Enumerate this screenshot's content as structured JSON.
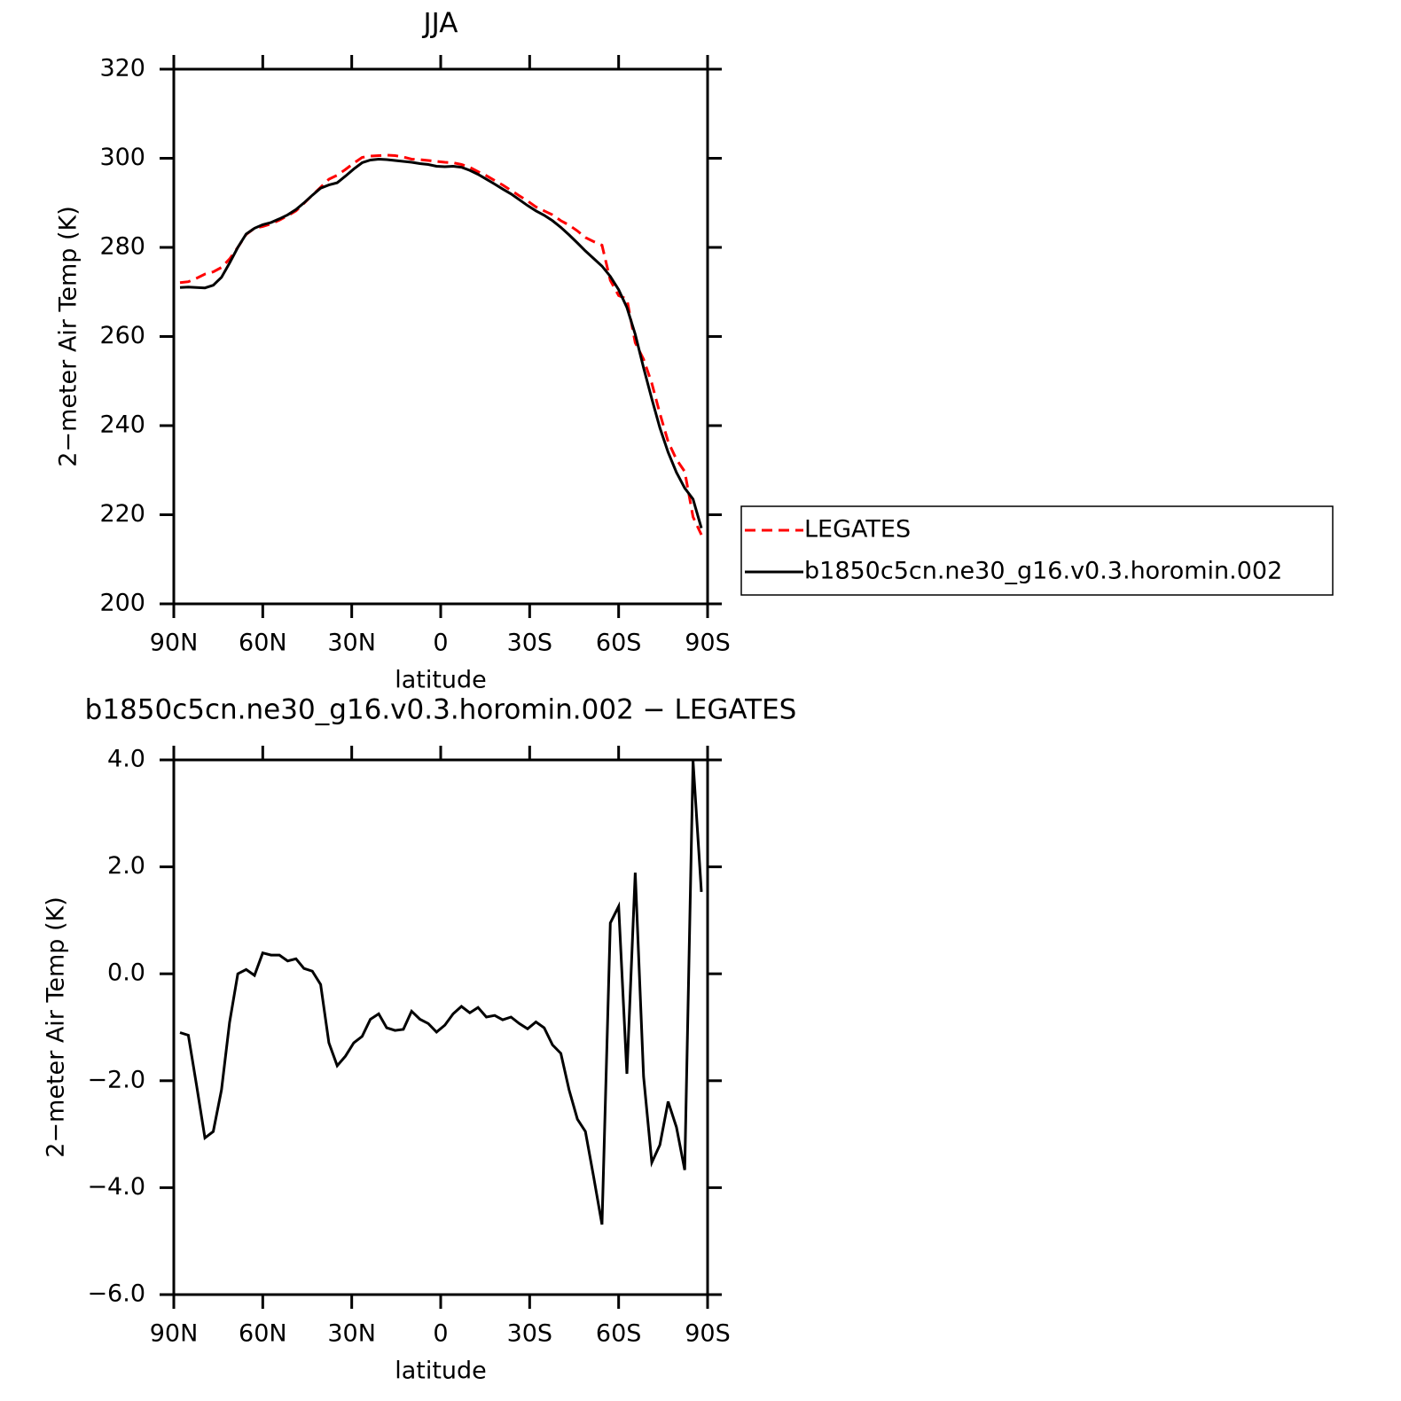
{
  "chart_data": [
    {
      "type": "line",
      "title": "JJA",
      "xlabel": "latitude",
      "ylabel": "2−meter Air Temp (K)",
      "x": [
        87.9,
        85.1,
        82.3,
        79.5,
        76.7,
        73.9,
        71.2,
        68.4,
        65.6,
        62.8,
        60.0,
        57.2,
        54.4,
        51.6,
        48.8,
        46.1,
        43.3,
        40.5,
        37.7,
        34.9,
        32.1,
        29.3,
        26.5,
        23.7,
        20.9,
        18.2,
        15.4,
        12.6,
        9.8,
        7.0,
        4.2,
        1.4,
        -1.4,
        -4.2,
        -7.0,
        -9.8,
        -12.6,
        -15.4,
        -18.2,
        -20.9,
        -23.7,
        -26.5,
        -29.3,
        -32.1,
        -34.9,
        -37.7,
        -40.5,
        -43.3,
        -46.1,
        -48.8,
        -51.6,
        -54.4,
        -57.2,
        -60.0,
        -62.8,
        -65.6,
        -68.4,
        -71.2,
        -73.9,
        -76.7,
        -79.5,
        -82.3,
        -85.1,
        -87.9
      ],
      "series": [
        {
          "name": "LEGATES",
          "color": "#ff0000",
          "line_style": "dashed",
          "values": [
            272.1,
            272.3,
            273.1,
            274.0,
            274.5,
            275.5,
            277.4,
            280.0,
            282.9,
            284.3,
            284.7,
            285.3,
            286.1,
            287.1,
            288.2,
            289.9,
            291.7,
            293.5,
            295.3,
            296.2,
            297.5,
            298.9,
            300.2,
            300.5,
            300.6,
            300.7,
            300.6,
            300.3,
            299.8,
            299.7,
            299.5,
            299.3,
            299.1,
            299.0,
            298.6,
            298.0,
            297.0,
            296.1,
            295.0,
            294.0,
            292.8,
            291.6,
            290.4,
            289.1,
            288.2,
            287.3,
            286.0,
            285.0,
            283.7,
            282.2,
            281.3,
            280.5,
            272.6,
            269.2,
            268.4,
            258.6,
            254.9,
            249.5,
            242.7,
            236.4,
            232.4,
            229.7,
            219.5,
            215.5
          ]
        },
        {
          "name": "b1850c5cn.ne30_g16.v0.3.horomin.002",
          "color": "#000000",
          "line_style": "solid",
          "values": [
            271.0,
            271.1,
            271.0,
            270.9,
            271.5,
            273.3,
            276.5,
            280.0,
            283.0,
            284.3,
            285.1,
            285.6,
            286.4,
            287.3,
            288.5,
            290.0,
            291.7,
            293.3,
            294.0,
            294.5,
            296.0,
            297.6,
            299.0,
            299.6,
            299.8,
            299.7,
            299.5,
            299.3,
            299.1,
            298.8,
            298.6,
            298.2,
            298.1,
            298.2,
            298.0,
            297.3,
            296.4,
            295.3,
            294.2,
            293.1,
            292.0,
            290.7,
            289.4,
            288.2,
            287.2,
            286.0,
            284.5,
            282.8,
            281.0,
            279.2,
            277.5,
            275.8,
            273.5,
            270.5,
            266.5,
            260.5,
            253.0,
            246.0,
            239.5,
            234.0,
            229.5,
            226.0,
            223.5,
            217.0
          ]
        }
      ],
      "xlim": [
        90,
        -90
      ],
      "xticks": [
        {
          "value": 90,
          "label": "90N"
        },
        {
          "value": 60,
          "label": "60N"
        },
        {
          "value": 30,
          "label": "30N"
        },
        0,
        {
          "value": -30,
          "label": "30S"
        },
        {
          "value": -60,
          "label": "60S"
        },
        {
          "value": -90,
          "label": "90S"
        }
      ],
      "ylim": [
        200,
        320
      ],
      "yticks": [
        200,
        220,
        240,
        260,
        280,
        300,
        320
      ],
      "legend": "right"
    },
    {
      "type": "line",
      "title": "b1850c5cn.ne30_g16.v0.3.horomin.002 − LEGATES",
      "xlabel": "latitude",
      "ylabel": "2−meter Air Temp (K)",
      "x": [
        87.9,
        85.1,
        82.3,
        79.5,
        76.7,
        73.9,
        71.2,
        68.4,
        65.6,
        62.8,
        60.0,
        57.2,
        54.4,
        51.6,
        48.8,
        46.1,
        43.3,
        40.5,
        37.7,
        34.9,
        32.1,
        29.3,
        26.5,
        23.7,
        20.9,
        18.2,
        15.4,
        12.6,
        9.8,
        7.0,
        4.2,
        1.4,
        -1.4,
        -4.2,
        -7.0,
        -9.8,
        -12.6,
        -15.4,
        -18.2,
        -20.9,
        -23.7,
        -26.5,
        -29.3,
        -32.1,
        -34.9,
        -37.7,
        -40.5,
        -43.3,
        -46.1,
        -48.8,
        -51.6,
        -54.4,
        -57.2,
        -60.0,
        -62.8,
        -65.6,
        -68.4,
        -71.2,
        -73.9,
        -76.7,
        -79.5,
        -82.3,
        -85.1,
        -87.9
      ],
      "values": [
        -1.1,
        -1.15,
        -2.1,
        -3.07,
        -2.95,
        -2.17,
        -0.91,
        0.0,
        0.08,
        -0.03,
        0.39,
        0.35,
        0.35,
        0.24,
        0.28,
        0.1,
        0.05,
        -0.2,
        -1.29,
        -1.72,
        -1.54,
        -1.29,
        -1.17,
        -0.85,
        -0.75,
        -1.01,
        -1.06,
        -1.04,
        -0.7,
        -0.85,
        -0.93,
        -1.09,
        -0.96,
        -0.75,
        -0.61,
        -0.73,
        -0.63,
        -0.81,
        -0.78,
        -0.86,
        -0.81,
        -0.93,
        -1.03,
        -0.9,
        -1.01,
        -1.33,
        -1.49,
        -2.17,
        -2.72,
        -2.95,
        -3.81,
        -4.69,
        0.95,
        1.26,
        -1.87,
        1.89,
        -1.92,
        -3.53,
        -3.2,
        -2.39,
        -2.87,
        -3.67,
        3.98,
        1.53
      ],
      "color": "#000000",
      "xlim": [
        90,
        -90
      ],
      "xticks": [
        {
          "value": 90,
          "label": "90N"
        },
        {
          "value": 60,
          "label": "60N"
        },
        {
          "value": 30,
          "label": "30N"
        },
        0,
        {
          "value": -30,
          "label": "30S"
        },
        {
          "value": -60,
          "label": "60S"
        },
        {
          "value": -90,
          "label": "90S"
        }
      ],
      "ylim": [
        -6,
        4
      ],
      "yticks": [
        {
          "value": -6,
          "label": "−6.0"
        },
        {
          "value": -4,
          "label": "−4.0"
        },
        {
          "value": -2,
          "label": "−2.0"
        },
        {
          "value": 0,
          "label": "0.0"
        },
        {
          "value": 2,
          "label": "2.0"
        },
        {
          "value": 4,
          "label": "4.0"
        }
      ]
    }
  ]
}
